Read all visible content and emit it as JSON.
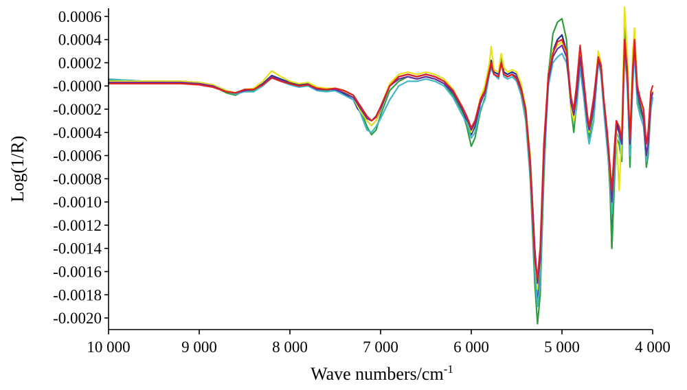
{
  "chart_data": {
    "type": "line",
    "title": "",
    "xlabel": "Wave numbers/cm",
    "xlabel_superscript": "-1",
    "ylabel": "Log(1/R)",
    "xlim": [
      10000,
      4000
    ],
    "ylim": [
      -0.0021,
      0.00067
    ],
    "x_reversed": true,
    "grid": false,
    "legend": "none",
    "xticks": [
      10000,
      9000,
      8000,
      7000,
      6000,
      5000,
      4000
    ],
    "xtick_labels": [
      "10 000",
      "9 000",
      "8 000",
      "7 000",
      "6 000",
      "5 000",
      "4 000"
    ],
    "yticks": [
      0.0006,
      0.0004,
      0.0002,
      0.0,
      -0.0002,
      -0.0004,
      -0.0006,
      -0.0008,
      -0.001,
      -0.0012,
      -0.0014,
      -0.0016,
      -0.0018,
      -0.002
    ],
    "ytick_labels": [
      "0.0006",
      "0.0004",
      "0.0002",
      "-0.0000",
      "-0.0002",
      "-0.0004",
      "-0.0006",
      "-0.0008",
      "-0.0010",
      "-0.0012",
      "-0.0014",
      "-0.0016",
      "-0.0018",
      "-0.0020"
    ],
    "x": [
      10000,
      9800,
      9600,
      9400,
      9200,
      9000,
      8850,
      8700,
      8600,
      8500,
      8400,
      8300,
      8200,
      8100,
      8000,
      7900,
      7800,
      7700,
      7600,
      7500,
      7400,
      7300,
      7250,
      7200,
      7150,
      7100,
      7050,
      7000,
      6900,
      6800,
      6700,
      6600,
      6500,
      6400,
      6300,
      6200,
      6100,
      6050,
      6000,
      5960,
      5900,
      5850,
      5800,
      5780,
      5750,
      5700,
      5670,
      5640,
      5600,
      5550,
      5500,
      5450,
      5400,
      5350,
      5300,
      5270,
      5240,
      5200,
      5150,
      5100,
      5050,
      5000,
      4950,
      4900,
      4870,
      4840,
      4800,
      4760,
      4720,
      4700,
      4650,
      4600,
      4570,
      4540,
      4500,
      4470,
      4450,
      4420,
      4400,
      4370,
      4340,
      4310,
      4280,
      4250,
      4220,
      4200,
      4170,
      4140,
      4100,
      4070,
      4050,
      4020,
      4000
    ],
    "series": [
      {
        "color": "#1f2f8f",
        "values": [
          3e-05,
          4e-05,
          4e-05,
          4e-05,
          4e-05,
          3e-05,
          1e-05,
          -4e-05,
          -6e-05,
          -3e-05,
          -3e-05,
          2e-05,
          9e-05,
          6e-05,
          3e-05,
          1e-05,
          2e-05,
          -2e-05,
          -3e-05,
          -3e-05,
          -7e-05,
          -0.00012,
          -0.0002,
          -0.00024,
          -0.0003,
          -0.00034,
          -0.0003,
          -0.0002,
          0.0,
          8e-05,
          0.0001,
          8e-05,
          0.0001,
          8e-05,
          4e-05,
          -5e-05,
          -0.0002,
          -0.0003,
          -0.00042,
          -0.00035,
          -0.00015,
          -5e-05,
          0.00015,
          0.00022,
          0.00012,
          0.0001,
          0.00024,
          0.00012,
          0.0001,
          0.00012,
          0.0001,
          0.0,
          -0.0002,
          -0.0006,
          -0.0014,
          -0.0019,
          -0.0016,
          -0.0006,
          0.0001,
          0.0003,
          0.0004,
          0.00044,
          0.0003,
          -0.0002,
          -0.0003,
          -0.0001,
          0.0003,
          0.0,
          -0.0003,
          -0.0004,
          -0.0002,
          0.00025,
          0.0002,
          -0.0001,
          -0.00045,
          -0.0008,
          -0.0014,
          -0.0006,
          -0.0003,
          -0.0004,
          -0.0005,
          0.0004,
          0.0002,
          -0.0006,
          0.0002,
          0.0004,
          0.0,
          -0.0001,
          -0.00025,
          -0.0006,
          -0.0005,
          -0.0001,
          -5e-05
        ]
      },
      {
        "color": "#2e9e3c",
        "values": [
          5e-05,
          5e-05,
          4e-05,
          4e-05,
          3e-05,
          2e-05,
          0.0,
          -6e-05,
          -8e-05,
          -4e-05,
          -4e-05,
          1e-05,
          8e-05,
          5e-05,
          2e-05,
          0.0,
          1e-05,
          -3e-05,
          -4e-05,
          -2e-05,
          -4e-05,
          -8e-05,
          -0.00015,
          -0.00025,
          -0.00035,
          -0.00042,
          -0.00038,
          -0.00025,
          -4e-05,
          4e-05,
          8e-05,
          6e-05,
          8e-05,
          6e-05,
          2e-05,
          -8e-05,
          -0.00022,
          -0.00035,
          -0.00052,
          -0.00045,
          -0.00022,
          -0.0001,
          0.00012,
          0.00018,
          0.0001,
          8e-05,
          0.00022,
          0.0001,
          8e-05,
          0.0001,
          8e-05,
          -4e-05,
          -0.00025,
          -0.0008,
          -0.0017,
          -0.00205,
          -0.0018,
          -0.0008,
          0.0001,
          0.00045,
          0.00055,
          0.00058,
          0.0004,
          -0.0002,
          -0.0004,
          -0.00015,
          0.00025,
          -5e-05,
          -0.00035,
          -0.00045,
          -0.0002,
          0.00025,
          0.00015,
          -0.00015,
          -0.0005,
          -0.0009,
          -0.0014,
          -0.0008,
          -0.00045,
          -0.0005,
          -0.00065,
          0.0005,
          0.0001,
          -0.0007,
          0.0001,
          0.00035,
          -0.0001,
          -0.0002,
          -0.0003,
          -0.0007,
          -0.0006,
          -0.0002,
          -0.0001
        ]
      },
      {
        "color": "#44b6c4",
        "values": [
          6e-05,
          5e-05,
          4e-05,
          3e-05,
          3e-05,
          2e-05,
          0.0,
          -5e-05,
          -7e-05,
          -5e-05,
          -5e-05,
          0.0,
          7e-05,
          4e-05,
          1e-05,
          -1e-05,
          0.0,
          -4e-05,
          -5e-05,
          -4e-05,
          -8e-05,
          -0.00012,
          -0.00018,
          -0.00028,
          -0.00038,
          -0.0004,
          -0.00035,
          -0.00028,
          -0.00012,
          0.0,
          4e-05,
          4e-05,
          6e-05,
          4e-05,
          0.0,
          -0.0001,
          -0.00025,
          -0.00032,
          -0.00045,
          -0.0004,
          -0.0002,
          -0.00012,
          0.0001,
          0.00015,
          0.0001,
          6e-05,
          0.0002,
          8e-05,
          6e-05,
          8e-05,
          4e-05,
          -8e-05,
          -0.0003,
          -0.0008,
          -0.0016,
          -0.0019,
          -0.0017,
          -0.0007,
          0.0,
          0.0002,
          0.00025,
          0.00028,
          0.0002,
          -0.0001,
          -0.0003,
          -0.0002,
          0.00015,
          -0.0001,
          -0.0004,
          -0.0005,
          -0.0003,
          0.0002,
          0.0001,
          -0.0002,
          -0.00055,
          -0.0008,
          -0.0011,
          -0.0007,
          -0.0004,
          -0.00045,
          -0.0006,
          0.0003,
          0.0,
          -0.0006,
          0.0,
          0.0003,
          -0.00015,
          -0.00025,
          -0.00035,
          -0.00065,
          -0.00055,
          -0.0002,
          -0.0001
        ]
      },
      {
        "color": "#e8e01a",
        "values": [
          4e-05,
          4e-05,
          4e-05,
          4e-05,
          4e-05,
          3e-05,
          1e-05,
          -4e-05,
          -6e-05,
          -3e-05,
          -2e-05,
          4e-05,
          0.00013,
          8e-05,
          4e-05,
          2e-05,
          3e-05,
          -1e-05,
          -2e-05,
          -2e-05,
          -5e-05,
          -0.0001,
          -0.00018,
          -0.00024,
          -0.0003,
          -0.00034,
          -0.0003,
          -0.00018,
          2e-05,
          0.0001,
          0.00012,
          0.0001,
          0.00012,
          0.0001,
          6e-05,
          -3e-05,
          -0.00018,
          -0.00028,
          -0.0004,
          -0.00032,
          -0.0001,
          0.0,
          0.0002,
          0.00034,
          0.00014,
          0.00012,
          0.00028,
          0.00016,
          0.00012,
          0.00014,
          0.00012,
          2e-05,
          -0.00018,
          -0.0006,
          -0.0014,
          -0.00175,
          -0.0015,
          -0.00055,
          0.0001,
          0.0003,
          0.00035,
          0.00038,
          0.00028,
          -0.0002,
          -0.0003,
          -0.0001,
          0.00032,
          0.0,
          -0.0003,
          -0.0004,
          -0.00015,
          0.0003,
          0.0002,
          -0.0001,
          -0.00045,
          -0.0008,
          -0.00095,
          -0.0006,
          -0.0004,
          -0.0009,
          -0.0004,
          0.00068,
          0.0003,
          -0.0005,
          0.0003,
          0.0005,
          0.0,
          -0.0001,
          -0.00025,
          -0.0006,
          -0.0005,
          -0.0001,
          -5e-05
        ]
      },
      {
        "color": "#6a2f9e",
        "values": [
          3e-05,
          3e-05,
          3e-05,
          3e-05,
          3e-05,
          2e-05,
          0.0,
          -5e-05,
          -6e-05,
          -4e-05,
          -3e-05,
          1e-05,
          8e-05,
          5e-05,
          2e-05,
          0.0,
          1e-05,
          -3e-05,
          -3e-05,
          -3e-05,
          -6e-05,
          -0.0001,
          -0.00016,
          -0.00022,
          -0.00028,
          -0.0003,
          -0.00026,
          -0.00018,
          0.0,
          6e-05,
          8e-05,
          6e-05,
          8e-05,
          6e-05,
          2e-05,
          -6e-05,
          -0.0002,
          -0.00028,
          -0.00038,
          -0.00032,
          -0.00014,
          -6e-05,
          0.00012,
          0.00018,
          0.0001,
          8e-05,
          0.0002,
          0.0001,
          8e-05,
          0.0001,
          8e-05,
          -2e-05,
          -0.0002,
          -0.00065,
          -0.0014,
          -0.0017,
          -0.0015,
          -0.0006,
          5e-05,
          0.00025,
          0.00032,
          0.00035,
          0.00025,
          -0.00015,
          -0.00025,
          -0.0001,
          0.00025,
          -2e-05,
          -0.0003,
          -0.00038,
          -0.00018,
          0.00022,
          0.00015,
          -0.00012,
          -0.00045,
          -0.00075,
          -0.001,
          -0.0006,
          -0.00035,
          -0.0004,
          -0.0005,
          0.00035,
          0.0001,
          -0.0005,
          0.0001,
          0.00035,
          -5e-05,
          -0.00015,
          -0.00028,
          -0.0006,
          -0.0005,
          -0.00012,
          -6e-05
        ]
      },
      {
        "color": "#e02020",
        "values": [
          2e-05,
          2e-05,
          2e-05,
          2e-05,
          2e-05,
          1e-05,
          -1e-05,
          -5e-05,
          -6e-05,
          -3e-05,
          -3e-05,
          1e-05,
          7e-05,
          4e-05,
          2e-05,
          0.0,
          1e-05,
          -2e-05,
          -3e-05,
          -2e-05,
          -4e-05,
          -8e-05,
          -0.00014,
          -0.0002,
          -0.00026,
          -0.0003,
          -0.00027,
          -0.00018,
          0.0,
          8e-05,
          0.0001,
          8e-05,
          0.0001,
          8e-05,
          4e-05,
          -4e-05,
          -0.00018,
          -0.00026,
          -0.00036,
          -0.0003,
          -0.00012,
          -4e-05,
          0.00014,
          0.0002,
          0.0001,
          8e-05,
          0.0002,
          0.0001,
          8e-05,
          0.0001,
          6e-05,
          -4e-05,
          -0.00022,
          -0.0007,
          -0.0015,
          -0.00165,
          -0.0014,
          -0.0005,
          0.0001,
          0.00028,
          0.00038,
          0.0004,
          0.0003,
          -0.0001,
          -0.0002,
          0.0,
          0.00035,
          5e-05,
          -0.00025,
          -0.00035,
          -0.0001,
          0.00025,
          0.00018,
          -0.0001,
          -0.0004,
          -0.0007,
          -0.0009,
          -0.0005,
          -0.0003,
          -0.00035,
          -0.00045,
          0.0004,
          0.00015,
          -0.00045,
          0.00015,
          0.0004,
          0.0,
          -0.0001,
          -0.0002,
          -0.0005,
          -0.0004,
          -5e-05,
          0.0
        ]
      }
    ]
  }
}
